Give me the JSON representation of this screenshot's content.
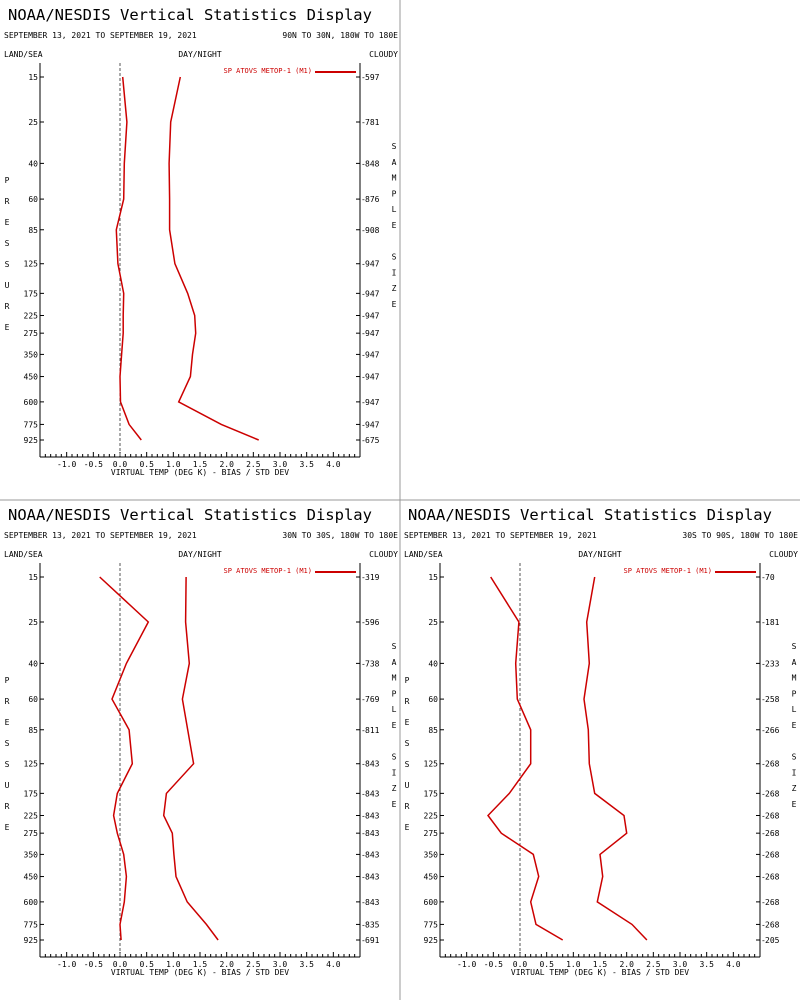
{
  "colors": {
    "series": "#cc0000",
    "axis": "#000000",
    "zero_line": "#555555",
    "divider": "#999999"
  },
  "chart_data": [
    {
      "type": "line",
      "title": "NOAA/NESDIS Vertical Statistics Display",
      "date_range": "SEPTEMBER 13, 2021 TO SEPTEMBER 19, 2021",
      "region": "90N TO 30N, 180W TO 180E",
      "land_sea_label": "LAND/SEA",
      "day_night_label": "DAY/NIGHT",
      "cloudy_label": "CLOUDY",
      "ylabel": "PRESSURE",
      "y2label": "SAMPLE SIZE",
      "xlabel": "VIRTUAL TEMP (DEG K) - BIAS / STD DEV",
      "legend": "SP ATOVS METOP-1 (M1)",
      "legend_position": "top-right",
      "xlim": [
        -1.5,
        4.5
      ],
      "x_ticks": [
        "-1.0",
        "-0.5",
        "0.0",
        "0.5",
        "1.0",
        "1.5",
        "2.0",
        "2.5",
        "3.0",
        "3.5",
        "4.0"
      ],
      "pressure_levels": [
        "15",
        "25",
        "40",
        "60",
        "85",
        "125",
        "175",
        "225",
        "275",
        "350",
        "450",
        "600",
        "775",
        "925"
      ],
      "sample_size": [
        "597",
        "781",
        "848",
        "876",
        "908",
        "947",
        "947",
        "947",
        "947",
        "947",
        "947",
        "947",
        "947",
        "675"
      ],
      "bias": [
        0.05,
        0.13,
        0.08,
        0.07,
        -0.07,
        -0.04,
        0.07,
        0.06,
        0.06,
        0.03,
        0.0,
        0.01,
        0.17,
        0.4
      ],
      "std_dev": [
        1.13,
        0.95,
        0.92,
        0.93,
        0.93,
        1.03,
        1.27,
        1.4,
        1.42,
        1.36,
        1.32,
        1.1,
        1.9,
        2.6
      ]
    },
    {
      "type": "line",
      "title": "NOAA/NESDIS Vertical Statistics Display",
      "date_range": "SEPTEMBER 13, 2021 TO SEPTEMBER 19, 2021",
      "region": "30N TO 30S, 180W TO 180E",
      "land_sea_label": "LAND/SEA",
      "day_night_label": "DAY/NIGHT",
      "cloudy_label": "CLOUDY",
      "ylabel": "PRESSURE",
      "y2label": "SAMPLE SIZE",
      "xlabel": "VIRTUAL TEMP (DEG K) - BIAS / STD DEV",
      "legend": "SP ATOVS METOP-1 (M1)",
      "legend_position": "top-right",
      "xlim": [
        -1.5,
        4.5
      ],
      "x_ticks": [
        "-1.0",
        "-0.5",
        "0.0",
        "0.5",
        "1.0",
        "1.5",
        "2.0",
        "2.5",
        "3.0",
        "3.5",
        "4.0"
      ],
      "pressure_levels": [
        "15",
        "25",
        "40",
        "60",
        "85",
        "125",
        "175",
        "225",
        "275",
        "350",
        "450",
        "600",
        "775",
        "925"
      ],
      "sample_size": [
        "319",
        "596",
        "738",
        "769",
        "811",
        "843",
        "843",
        "843",
        "843",
        "843",
        "843",
        "843",
        "835",
        "691"
      ],
      "bias": [
        -0.38,
        0.53,
        0.12,
        -0.15,
        0.17,
        0.23,
        -0.05,
        -0.12,
        -0.05,
        0.07,
        0.12,
        0.08,
        0.0,
        0.02
      ],
      "std_dev": [
        1.24,
        1.23,
        1.3,
        1.17,
        1.27,
        1.38,
        0.87,
        0.82,
        0.98,
        1.01,
        1.05,
        1.26,
        1.62,
        1.84
      ]
    },
    {
      "type": "line",
      "title": "NOAA/NESDIS Vertical Statistics Display",
      "date_range": "SEPTEMBER 13, 2021 TO SEPTEMBER 19, 2021",
      "region": "30S TO 90S, 180W TO 180E",
      "land_sea_label": "LAND/SEA",
      "day_night_label": "DAY/NIGHT",
      "cloudy_label": "CLOUDY",
      "ylabel": "PRESSURE",
      "y2label": "SAMPLE SIZE",
      "xlabel": "VIRTUAL TEMP (DEG K) - BIAS / STD DEV",
      "legend": "SP ATOVS METOP-1 (M1)",
      "legend_position": "top-right",
      "xlim": [
        -1.5,
        4.5
      ],
      "x_ticks": [
        "-1.0",
        "-0.5",
        "0.0",
        "0.5",
        "1.0",
        "1.5",
        "2.0",
        "2.5",
        "3.0",
        "3.5",
        "4.0"
      ],
      "pressure_levels": [
        "15",
        "25",
        "40",
        "60",
        "85",
        "125",
        "175",
        "225",
        "275",
        "350",
        "450",
        "600",
        "775",
        "925"
      ],
      "sample_size": [
        "70",
        "181",
        "233",
        "258",
        "266",
        "268",
        "268",
        "268",
        "268",
        "268",
        "268",
        "268",
        "268",
        "205"
      ],
      "bias": [
        -0.55,
        -0.02,
        -0.08,
        -0.05,
        0.2,
        0.2,
        -0.2,
        -0.6,
        -0.35,
        0.25,
        0.35,
        0.2,
        0.3,
        0.8
      ],
      "std_dev": [
        1.4,
        1.25,
        1.3,
        1.2,
        1.28,
        1.3,
        1.4,
        1.95,
        2.0,
        1.5,
        1.55,
        1.45,
        2.1,
        2.38
      ]
    }
  ]
}
